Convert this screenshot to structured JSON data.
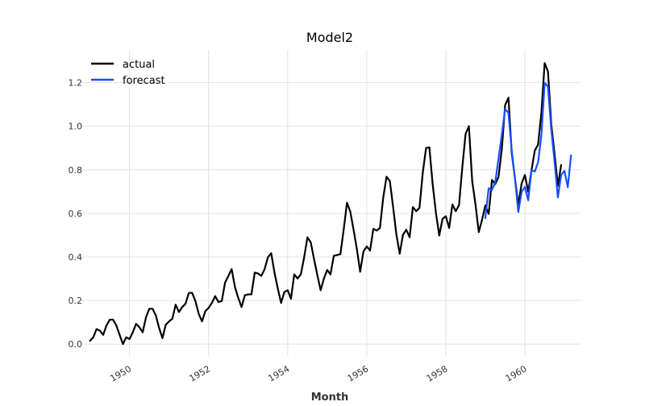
{
  "chart_data": {
    "type": "line",
    "title": "Model2",
    "xlabel": "Month",
    "ylabel": "",
    "xlim": [
      "1948-10-06",
      "1961-05-28"
    ],
    "ylim": [
      -0.055,
      1.35
    ],
    "x_ticks": [
      "1950-01-01",
      "1952-01-01",
      "1954-01-01",
      "1956-01-01",
      "1958-01-01",
      "1960-01-01"
    ],
    "x_tick_labels": [
      "1950",
      "1952",
      "1954",
      "1956",
      "1958",
      "1960"
    ],
    "y_ticks": [
      0.0,
      0.2,
      0.4,
      0.6,
      0.8,
      1.0,
      1.2
    ],
    "y_tick_labels": [
      "0.0",
      "0.2",
      "0.4",
      "0.6",
      "0.8",
      "1.0",
      "1.2"
    ],
    "grid": true,
    "legend_position": "top-left",
    "series": [
      {
        "name": "actual",
        "color": "#000000",
        "x_start": "1949-01",
        "x_step": "month",
        "values": [
          0.015,
          0.031,
          0.069,
          0.062,
          0.042,
          0.085,
          0.112,
          0.112,
          0.085,
          0.042,
          0.0,
          0.031,
          0.023,
          0.054,
          0.093,
          0.077,
          0.054,
          0.123,
          0.162,
          0.162,
          0.131,
          0.073,
          0.027,
          0.089,
          0.104,
          0.116,
          0.181,
          0.147,
          0.17,
          0.185,
          0.235,
          0.235,
          0.197,
          0.139,
          0.104,
          0.151,
          0.166,
          0.189,
          0.22,
          0.193,
          0.197,
          0.282,
          0.313,
          0.344,
          0.262,
          0.212,
          0.17,
          0.224,
          0.228,
          0.228,
          0.328,
          0.324,
          0.313,
          0.344,
          0.398,
          0.417,
          0.328,
          0.255,
          0.189,
          0.239,
          0.247,
          0.208,
          0.32,
          0.301,
          0.32,
          0.398,
          0.49,
          0.467,
          0.39,
          0.317,
          0.247,
          0.301,
          0.34,
          0.32,
          0.405,
          0.409,
          0.413,
          0.525,
          0.649,
          0.608,
          0.525,
          0.436,
          0.332,
          0.425,
          0.448,
          0.429,
          0.529,
          0.521,
          0.533,
          0.672,
          0.768,
          0.749,
          0.629,
          0.502,
          0.415,
          0.502,
          0.525,
          0.49,
          0.629,
          0.61,
          0.625,
          0.786,
          0.9,
          0.903,
          0.734,
          0.602,
          0.498,
          0.575,
          0.587,
          0.533,
          0.641,
          0.61,
          0.637,
          0.811,
          0.965,
          1.0,
          0.749,
          0.641,
          0.514,
          0.571,
          0.637,
          0.597,
          0.753,
          0.734,
          0.768,
          0.896,
          1.097,
          1.131,
          0.876,
          0.759,
          0.639,
          0.737,
          0.776,
          0.699,
          0.798,
          0.888,
          0.916,
          1.062,
          1.29,
          1.251,
          1.008,
          0.874,
          0.726,
          0.822
        ]
      },
      {
        "name": "forecast",
        "color": "#1a4dff",
        "x_start": "1959-01",
        "x_step": "month",
        "values": [
          0.578,
          0.715,
          0.708,
          0.742,
          0.852,
          0.962,
          1.079,
          1.061,
          0.889,
          0.758,
          0.606,
          0.698,
          0.722,
          0.66,
          0.798,
          0.792,
          0.834,
          0.96,
          1.199,
          1.181,
          0.985,
          0.837,
          0.673,
          0.776,
          0.795,
          0.72,
          0.866
        ]
      }
    ]
  }
}
